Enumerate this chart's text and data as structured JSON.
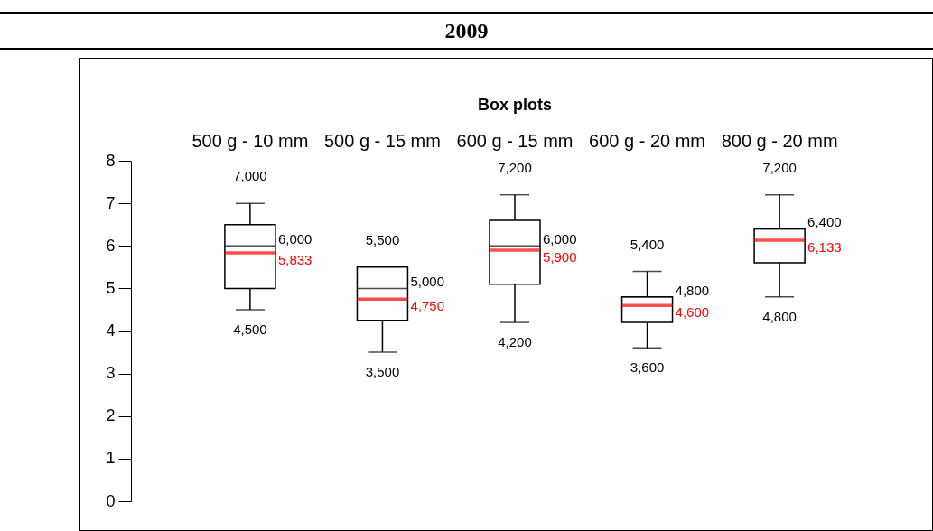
{
  "chart_data": {
    "type": "box",
    "title": "2009",
    "subtitle": "Box plots",
    "categories": [
      "500 g - 10 mm",
      "500 g - 15 mm",
      "600 g - 15 mm",
      "600 g - 20 mm",
      "800 g - 20 mm"
    ],
    "boxes": [
      {
        "low": 4.5,
        "q1": 5.0,
        "median": 6.0,
        "q3": 6.5,
        "high": 7.0,
        "mean": 5.833
      },
      {
        "low": 3.5,
        "q1": 4.25,
        "median": 5.0,
        "q3": 5.5,
        "high": 5.5,
        "mean": 4.75
      },
      {
        "low": 4.2,
        "q1": 5.1,
        "median": 6.0,
        "q3": 6.6,
        "high": 7.2,
        "mean": 5.9
      },
      {
        "low": 3.6,
        "q1": 4.2,
        "median": 4.8,
        "q3": 4.8,
        "high": 5.4,
        "mean": 4.6
      },
      {
        "low": 4.8,
        "q1": 5.6,
        "median": 6.4,
        "q3": 6.4,
        "high": 7.2,
        "mean": 6.133
      }
    ],
    "ylim": [
      0,
      8
    ],
    "yticks": [
      0,
      1,
      2,
      3,
      4,
      5,
      6,
      7,
      8
    ],
    "grid": false,
    "annotations": [
      {
        "text": "7,000",
        "x": "500 g - 10 mm",
        "y": 7.0
      },
      {
        "text": "6,000",
        "x": "500 g - 10 mm",
        "y": 6.0
      },
      {
        "text": "5,833",
        "x": "500 g - 10 mm",
        "y": 5.833
      },
      {
        "text": "4,500",
        "x": "500 g - 10 mm",
        "y": 4.5
      },
      {
        "text": "5,500",
        "x": "500 g - 15 mm",
        "y": 5.5
      },
      {
        "text": "5,000",
        "x": "500 g - 15 mm",
        "y": 5.0
      },
      {
        "text": "4,750",
        "x": "500 g - 15 mm",
        "y": 4.75
      },
      {
        "text": "3,500",
        "x": "500 g - 15 mm",
        "y": 3.5
      },
      {
        "text": "7,200",
        "x": "600 g - 15 mm",
        "y": 7.2
      },
      {
        "text": "6,000",
        "x": "600 g - 15 mm",
        "y": 6.0
      },
      {
        "text": "5,900",
        "x": "600 g - 15 mm",
        "y": 5.9
      },
      {
        "text": "4,200",
        "x": "600 g - 15 mm",
        "y": 4.2
      },
      {
        "text": "5,400",
        "x": "600 g - 20 mm",
        "y": 5.4
      },
      {
        "text": "4,800",
        "x": "600 g - 20 mm",
        "y": 4.8
      },
      {
        "text": "4,600",
        "x": "600 g - 20 mm",
        "y": 4.6
      },
      {
        "text": "3,600",
        "x": "600 g - 20 mm",
        "y": 3.6
      },
      {
        "text": "7,200",
        "x": "800 g - 20 mm",
        "y": 7.2
      },
      {
        "text": "6,400",
        "x": "800 g - 20 mm",
        "y": 6.4
      },
      {
        "text": "6,133",
        "x": "800 g - 20 mm",
        "y": 6.133
      },
      {
        "text": "4,800",
        "x": "800 g - 20 mm",
        "y": 4.8
      }
    ]
  }
}
